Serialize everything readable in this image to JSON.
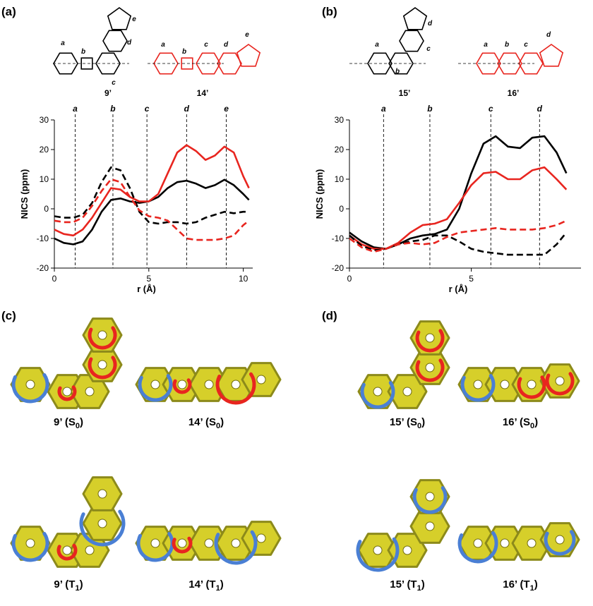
{
  "panels": [
    "(a)",
    "(b)",
    "(c)",
    "(d)"
  ],
  "structures": [
    {
      "label": "9’",
      "ring_labels": [
        "a",
        "b",
        "c",
        "d",
        "e"
      ]
    },
    {
      "label": "14’",
      "ring_labels": [
        "a",
        "b",
        "c",
        "d",
        "e"
      ]
    },
    {
      "label": "15’",
      "ring_labels": [
        "a",
        "b",
        "c",
        "d"
      ]
    },
    {
      "label": "16’",
      "ring_labels": [
        "a",
        "b",
        "c",
        "d"
      ]
    }
  ],
  "chart_data": [
    {
      "type": "line",
      "ylabel": "NICS (ppm)",
      "xlabel": "r (Å)",
      "xlim": [
        0,
        10.5
      ],
      "xticks": [
        0,
        5,
        10
      ],
      "ylim": [
        -20,
        30
      ],
      "yticks": [
        -20,
        -10,
        0,
        10,
        20,
        30
      ],
      "markers": [
        {
          "label": "a",
          "x": 1.1
        },
        {
          "label": "b",
          "x": 3.1
        },
        {
          "label": "c",
          "x": 4.9
        },
        {
          "label": "d",
          "x": 7.0
        },
        {
          "label": "e",
          "x": 9.1
        }
      ],
      "x": [
        0,
        0.5,
        1,
        1.5,
        2,
        2.5,
        3,
        3.5,
        4,
        4.5,
        5,
        5.5,
        6,
        6.5,
        7,
        7.5,
        8,
        8.5,
        9,
        9.5,
        10,
        10.3
      ],
      "series": [
        {
          "color": "#000000",
          "dashed": false,
          "values": [
            -10,
            -11.5,
            -12,
            -11,
            -7,
            -1,
            3,
            3.5,
            2.5,
            2,
            2.5,
            4,
            7,
            9,
            9.5,
            8.5,
            7,
            8,
            9.8,
            8,
            5,
            3
          ]
        },
        {
          "color": "#e8251f",
          "dashed": false,
          "values": [
            -7,
            -8.5,
            -9,
            -7,
            -3,
            2,
            7,
            6.5,
            4,
            2.5,
            2.5,
            5,
            12,
            19,
            21.5,
            19.5,
            16.5,
            18,
            21,
            19,
            11,
            7
          ]
        },
        {
          "color": "#000000",
          "dashed": true,
          "values": [
            -2.5,
            -3,
            -3,
            -2,
            2,
            9,
            14,
            13,
            7,
            -1,
            -4.5,
            -5,
            -4.5,
            -4.5,
            -5,
            -4.5,
            -3,
            -2,
            -1,
            -1.5,
            -1,
            -1
          ]
        },
        {
          "color": "#e8251f",
          "dashed": true,
          "values": [
            -4,
            -4.5,
            -4.5,
            -3,
            1,
            6,
            10,
            9,
            4,
            -0.5,
            -2.5,
            -3,
            -4,
            -7,
            -10,
            -10.5,
            -10.5,
            -10.5,
            -10,
            -9,
            -5.5,
            -4
          ]
        }
      ]
    },
    {
      "type": "line",
      "ylabel": "NICS (ppm)",
      "xlabel": "r (Å)",
      "xlim": [
        0,
        9.5
      ],
      "xticks": [
        0,
        5
      ],
      "ylim": [
        -20,
        30
      ],
      "yticks": [
        -20,
        -10,
        0,
        10,
        20,
        30
      ],
      "markers": [
        {
          "label": "a",
          "x": 1.4
        },
        {
          "label": "b",
          "x": 3.3
        },
        {
          "label": "c",
          "x": 5.8
        },
        {
          "label": "d",
          "x": 7.8
        }
      ],
      "x": [
        0,
        0.5,
        1,
        1.5,
        2,
        2.5,
        3,
        3.5,
        4,
        4.5,
        5,
        5.5,
        6,
        6.5,
        7,
        7.5,
        8,
        8.5,
        8.9
      ],
      "series": [
        {
          "color": "#000000",
          "dashed": false,
          "values": [
            -8,
            -11,
            -13,
            -13.5,
            -12,
            -10,
            -9,
            -8.5,
            -7,
            0,
            12,
            22,
            24.5,
            21,
            20.5,
            24,
            24.5,
            19,
            12
          ]
        },
        {
          "color": "#e8251f",
          "dashed": false,
          "values": [
            -9,
            -12,
            -13.5,
            -13.5,
            -11.5,
            -8,
            -5.5,
            -5,
            -3.5,
            2,
            8,
            12,
            12.5,
            10,
            10,
            13,
            14,
            10,
            6.5
          ]
        },
        {
          "color": "#000000",
          "dashed": true,
          "values": [
            -9,
            -12.5,
            -14,
            -13.5,
            -12,
            -11,
            -10.5,
            -9,
            -9,
            -11,
            -13.5,
            -14.5,
            -15,
            -15.5,
            -15.5,
            -15.5,
            -15.5,
            -12,
            -8
          ]
        },
        {
          "color": "#e8251f",
          "dashed": true,
          "values": [
            -10,
            -13,
            -14.5,
            -13.5,
            -12,
            -11.5,
            -12,
            -11.5,
            -9.5,
            -8,
            -7.5,
            -7,
            -6.5,
            -7,
            -7,
            -7,
            -6.5,
            -5.5,
            -4
          ]
        }
      ]
    }
  ],
  "acid": [
    {
      "prefix": "9’ (S",
      "sub": "0",
      "suffix": ")"
    },
    {
      "prefix": "14’ (S",
      "sub": "0",
      "suffix": ")"
    },
    {
      "prefix": "15’ (S",
      "sub": "0",
      "suffix": ")"
    },
    {
      "prefix": "16’ (S",
      "sub": "0",
      "suffix": ")"
    },
    {
      "prefix": "9’ (T",
      "sub": "1",
      "suffix": ")"
    },
    {
      "prefix": "14’ (T",
      "sub": "1",
      "suffix": ")"
    },
    {
      "prefix": "15’ (T",
      "sub": "1",
      "suffix": ")"
    },
    {
      "prefix": "16’ (T",
      "sub": "1",
      "suffix": ")"
    }
  ]
}
